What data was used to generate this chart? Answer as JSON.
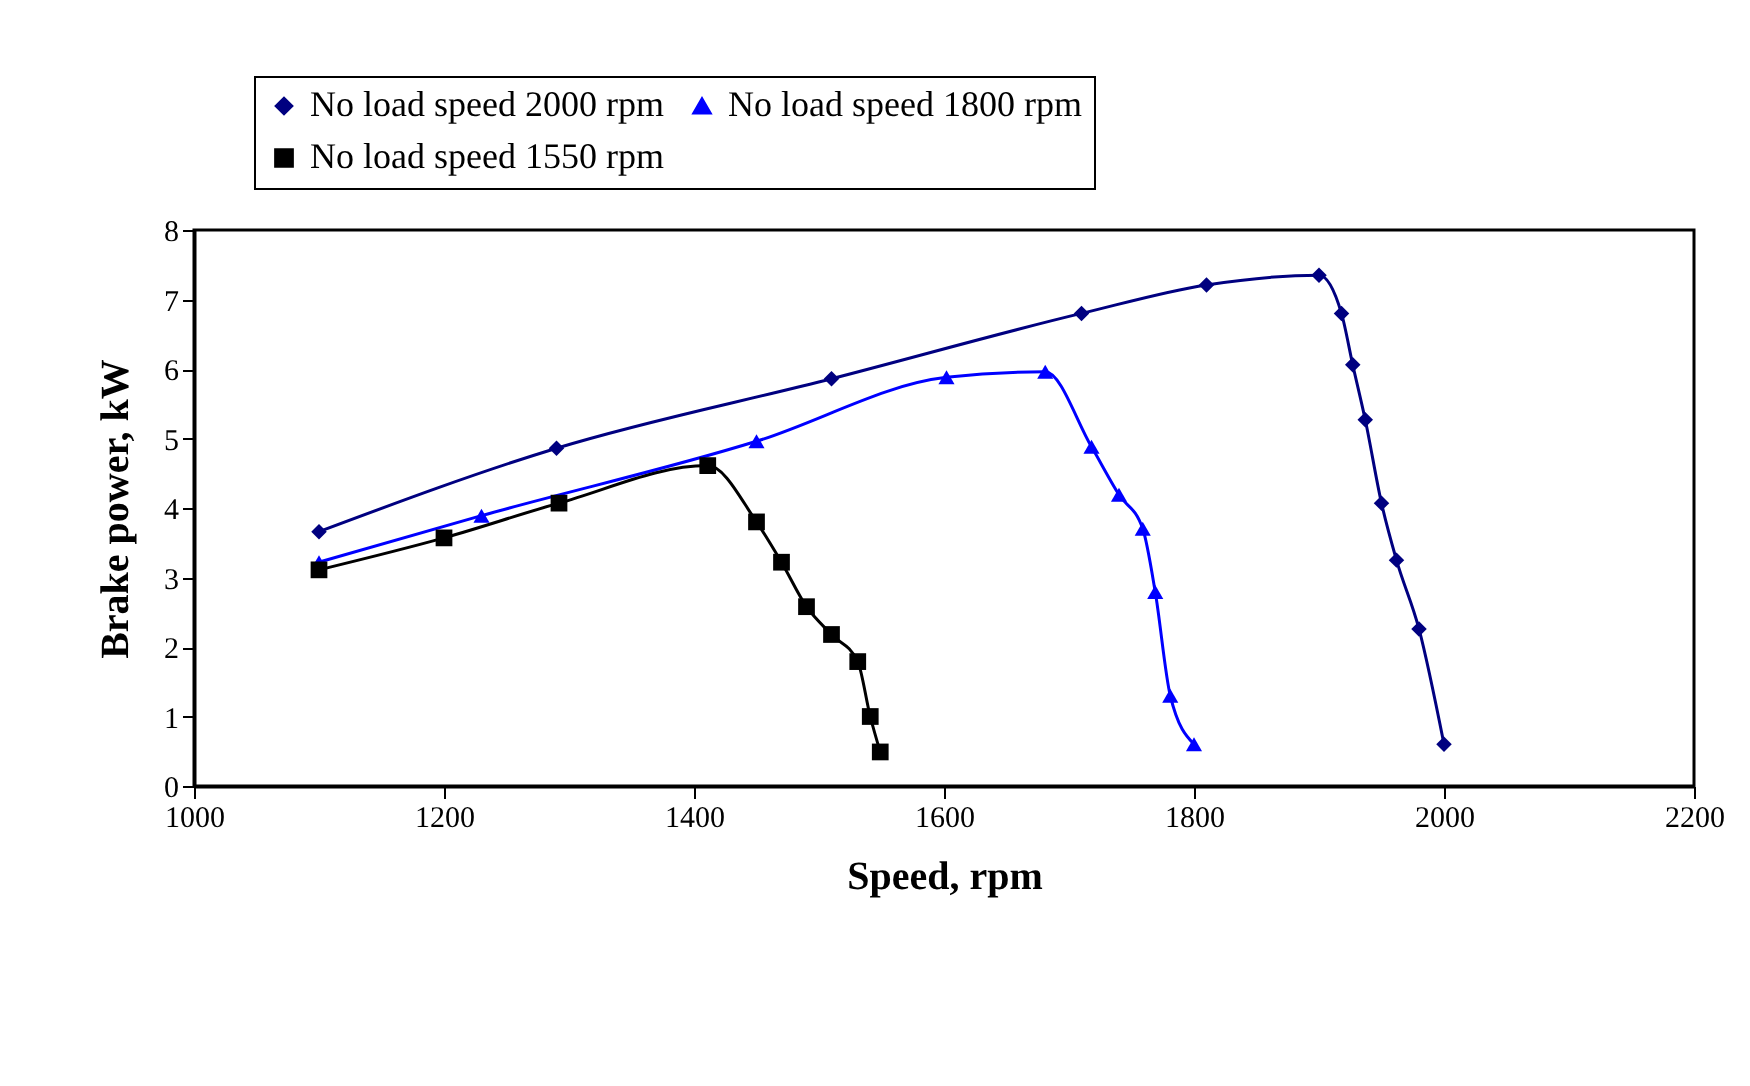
{
  "chart_data": {
    "type": "line",
    "xlabel": "Speed, rpm",
    "ylabel": "Brake power, kW",
    "xlim": [
      1000,
      2200
    ],
    "xticks": [
      1000,
      1200,
      1400,
      1600,
      1800,
      2000,
      2200
    ],
    "ylim": [
      0,
      8
    ],
    "yticks": [
      0,
      1,
      2,
      3,
      4,
      5,
      6,
      7,
      8
    ],
    "grid": false,
    "legend": "top",
    "line_style": "solid",
    "series": [
      {
        "name": "No load speed 2000 rpm",
        "color": "#000080",
        "marker": "diamond",
        "x": [
          1100,
          1290,
          1510,
          1710,
          1810,
          1900,
          1918,
          1927,
          1937,
          1950,
          1962,
          1980,
          2000
        ],
        "values": [
          3.66,
          4.86,
          5.86,
          6.8,
          7.21,
          7.35,
          6.8,
          6.06,
          5.27,
          4.07,
          3.25,
          2.26,
          0.6
        ]
      },
      {
        "name": "No load speed 1800 rpm",
        "color": "#0000ff",
        "marker": "triangle",
        "x": [
          1100,
          1230,
          1450,
          1602,
          1681,
          1718,
          1740,
          1759,
          1769,
          1781,
          1800
        ],
        "values": [
          3.22,
          3.89,
          4.96,
          5.88,
          5.96,
          4.88,
          4.19,
          3.7,
          2.79,
          1.3,
          0.6
        ]
      },
      {
        "name": "No load speed 1550 rpm",
        "color": "#000000",
        "marker": "square",
        "x": [
          1100,
          1200,
          1292,
          1411,
          1450,
          1470,
          1490,
          1510,
          1531,
          1541,
          1549
        ],
        "values": [
          3.11,
          3.57,
          4.07,
          4.61,
          3.8,
          3.22,
          2.58,
          2.18,
          1.79,
          1.0,
          0.49
        ]
      }
    ]
  }
}
